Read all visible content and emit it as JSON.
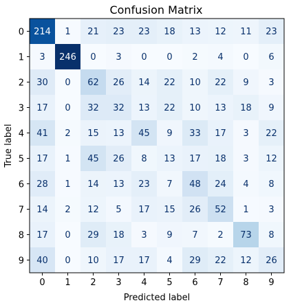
{
  "chart_data": {
    "type": "heatmap",
    "title": "Confusion Matrix",
    "xlabel": "Predicted label",
    "ylabel": "True label",
    "x_categories": [
      "0",
      "1",
      "2",
      "3",
      "4",
      "5",
      "6",
      "7",
      "8",
      "9"
    ],
    "y_categories": [
      "0",
      "1",
      "2",
      "3",
      "4",
      "5",
      "6",
      "7",
      "8",
      "9"
    ],
    "colormap": "Blues",
    "value_range": [
      0,
      246
    ],
    "grid": false,
    "values": [
      [
        214,
        1,
        21,
        23,
        23,
        18,
        13,
        12,
        11,
        23
      ],
      [
        3,
        246,
        0,
        3,
        0,
        0,
        2,
        4,
        0,
        6
      ],
      [
        30,
        0,
        62,
        26,
        14,
        22,
        10,
        22,
        9,
        3
      ],
      [
        17,
        0,
        32,
        32,
        13,
        22,
        10,
        13,
        18,
        9
      ],
      [
        41,
        2,
        15,
        13,
        45,
        9,
        33,
        17,
        3,
        22
      ],
      [
        17,
        1,
        45,
        26,
        8,
        13,
        17,
        18,
        3,
        12
      ],
      [
        28,
        1,
        14,
        13,
        23,
        7,
        48,
        24,
        4,
        8
      ],
      [
        14,
        2,
        12,
        5,
        17,
        15,
        26,
        52,
        1,
        3
      ],
      [
        17,
        0,
        29,
        18,
        3,
        9,
        7,
        2,
        73,
        8
      ],
      [
        40,
        0,
        10,
        17,
        17,
        4,
        29,
        22,
        12,
        26
      ]
    ]
  }
}
